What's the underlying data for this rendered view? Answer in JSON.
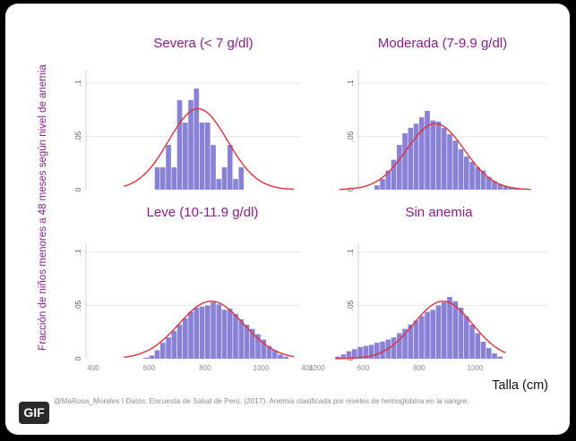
{
  "badge": {
    "label": "GIF"
  },
  "caption": "@MaRosa_Morales I Datos: Encuesta de Salud de Perú. (2017). Anemia clasificada por niveles de hemoglobina en la sangre.",
  "colors": {
    "bar": "#8a82d6",
    "curve": "#e0303a",
    "title": "#8b1c8c",
    "background": "#ffffff"
  },
  "chart_data": {
    "type": "bar",
    "ylabel": "Fracción de niños menores a 48 meses según nivel de anemia",
    "xlabel": "Talla (cm)",
    "yticks": [
      0,
      0.05,
      0.1
    ],
    "ytick_labels": [
      "0",
      ".05",
      ".1"
    ],
    "ylim": [
      0,
      0.11
    ],
    "grid": true,
    "panels": [
      {
        "name": "severa",
        "title": "Severa (< 7 g/dl)",
        "xlim": [
          400,
          1250
        ],
        "xticks": [],
        "bin_width": 20,
        "bins": [
          {
            "x": 620,
            "y": 0.021
          },
          {
            "x": 640,
            "y": 0.021
          },
          {
            "x": 660,
            "y": 0.042
          },
          {
            "x": 680,
            "y": 0.021
          },
          {
            "x": 700,
            "y": 0.084
          },
          {
            "x": 720,
            "y": 0.063
          },
          {
            "x": 740,
            "y": 0.084
          },
          {
            "x": 760,
            "y": 0.095
          },
          {
            "x": 780,
            "y": 0.063
          },
          {
            "x": 800,
            "y": 0.063
          },
          {
            "x": 820,
            "y": 0.042
          },
          {
            "x": 840,
            "y": 0.01
          },
          {
            "x": 860,
            "y": 0.021
          },
          {
            "x": 880,
            "y": 0.042
          },
          {
            "x": 900,
            "y": 0.01
          },
          {
            "x": 920,
            "y": 0.021
          }
        ],
        "curve": {
          "mean": 775,
          "sd": 105,
          "peak": 0.076,
          "range": [
            510,
            1120
          ]
        }
      },
      {
        "name": "moderada",
        "title": "Moderada (7-9.9 g/dl)",
        "xlim": [
          400,
          1250
        ],
        "xticks": [],
        "bin_width": 20,
        "bins": [
          {
            "x": 640,
            "y": 0.004
          },
          {
            "x": 660,
            "y": 0.01
          },
          {
            "x": 680,
            "y": 0.018
          },
          {
            "x": 700,
            "y": 0.028
          },
          {
            "x": 720,
            "y": 0.042
          },
          {
            "x": 740,
            "y": 0.053
          },
          {
            "x": 760,
            "y": 0.058
          },
          {
            "x": 780,
            "y": 0.062
          },
          {
            "x": 800,
            "y": 0.068
          },
          {
            "x": 820,
            "y": 0.074
          },
          {
            "x": 840,
            "y": 0.065
          },
          {
            "x": 860,
            "y": 0.064
          },
          {
            "x": 880,
            "y": 0.058
          },
          {
            "x": 900,
            "y": 0.052
          },
          {
            "x": 920,
            "y": 0.046
          },
          {
            "x": 940,
            "y": 0.038
          },
          {
            "x": 960,
            "y": 0.031
          },
          {
            "x": 980,
            "y": 0.026
          },
          {
            "x": 1000,
            "y": 0.021
          },
          {
            "x": 1020,
            "y": 0.018
          },
          {
            "x": 1040,
            "y": 0.012
          },
          {
            "x": 1060,
            "y": 0.008
          },
          {
            "x": 1080,
            "y": 0.005
          },
          {
            "x": 1100,
            "y": 0.003
          },
          {
            "x": 1120,
            "y": 0.002
          },
          {
            "x": 1140,
            "y": 0.001
          }
        ],
        "curve": {
          "mean": 858,
          "sd": 103,
          "peak": 0.062,
          "range": [
            515,
            1200
          ]
        }
      },
      {
        "name": "leve",
        "title": "Leve (10-11.9 g/dl)",
        "xlim": [
          400,
          1250
        ],
        "xticks": [
          400,
          600,
          800,
          1000,
          1200
        ],
        "bin_width": 20,
        "bins": [
          {
            "x": 580,
            "y": 0.001
          },
          {
            "x": 600,
            "y": 0.003
          },
          {
            "x": 620,
            "y": 0.008
          },
          {
            "x": 640,
            "y": 0.015
          },
          {
            "x": 660,
            "y": 0.02
          },
          {
            "x": 680,
            "y": 0.026
          },
          {
            "x": 700,
            "y": 0.032
          },
          {
            "x": 720,
            "y": 0.038
          },
          {
            "x": 740,
            "y": 0.044
          },
          {
            "x": 760,
            "y": 0.048
          },
          {
            "x": 780,
            "y": 0.049
          },
          {
            "x": 800,
            "y": 0.05
          },
          {
            "x": 820,
            "y": 0.053
          },
          {
            "x": 840,
            "y": 0.051
          },
          {
            "x": 860,
            "y": 0.046
          },
          {
            "x": 880,
            "y": 0.047
          },
          {
            "x": 900,
            "y": 0.042
          },
          {
            "x": 920,
            "y": 0.037
          },
          {
            "x": 940,
            "y": 0.032
          },
          {
            "x": 960,
            "y": 0.028
          },
          {
            "x": 980,
            "y": 0.023
          },
          {
            "x": 1000,
            "y": 0.018
          },
          {
            "x": 1020,
            "y": 0.012
          },
          {
            "x": 1040,
            "y": 0.008
          },
          {
            "x": 1060,
            "y": 0.004
          },
          {
            "x": 1080,
            "y": 0.002
          }
        ],
        "curve": {
          "mean": 822,
          "sd": 115,
          "peak": 0.054,
          "range": [
            510,
            1120
          ]
        }
      },
      {
        "name": "sin-anemia",
        "title": "Sin anemia",
        "xlim": [
          400,
          1250
        ],
        "xticks": [
          400,
          600,
          800,
          1000
        ],
        "bin_width": 20,
        "bins": [
          {
            "x": 500,
            "y": 0.002
          },
          {
            "x": 520,
            "y": 0.004
          },
          {
            "x": 540,
            "y": 0.007
          },
          {
            "x": 560,
            "y": 0.009
          },
          {
            "x": 580,
            "y": 0.011
          },
          {
            "x": 600,
            "y": 0.012
          },
          {
            "x": 620,
            "y": 0.013
          },
          {
            "x": 640,
            "y": 0.015
          },
          {
            "x": 660,
            "y": 0.016
          },
          {
            "x": 680,
            "y": 0.018
          },
          {
            "x": 700,
            "y": 0.02
          },
          {
            "x": 720,
            "y": 0.024
          },
          {
            "x": 740,
            "y": 0.028
          },
          {
            "x": 760,
            "y": 0.032
          },
          {
            "x": 780,
            "y": 0.036
          },
          {
            "x": 800,
            "y": 0.04
          },
          {
            "x": 820,
            "y": 0.044
          },
          {
            "x": 840,
            "y": 0.046
          },
          {
            "x": 860,
            "y": 0.05
          },
          {
            "x": 880,
            "y": 0.053
          },
          {
            "x": 900,
            "y": 0.058
          },
          {
            "x": 920,
            "y": 0.054
          },
          {
            "x": 940,
            "y": 0.048
          },
          {
            "x": 960,
            "y": 0.04
          },
          {
            "x": 980,
            "y": 0.032
          },
          {
            "x": 1000,
            "y": 0.024
          },
          {
            "x": 1020,
            "y": 0.016
          },
          {
            "x": 1040,
            "y": 0.01
          },
          {
            "x": 1060,
            "y": 0.005
          },
          {
            "x": 1080,
            "y": 0.002
          }
        ],
        "curve": {
          "mean": 885,
          "sd": 105,
          "peak": 0.054,
          "range": [
            500,
            1110
          ]
        }
      }
    ]
  }
}
